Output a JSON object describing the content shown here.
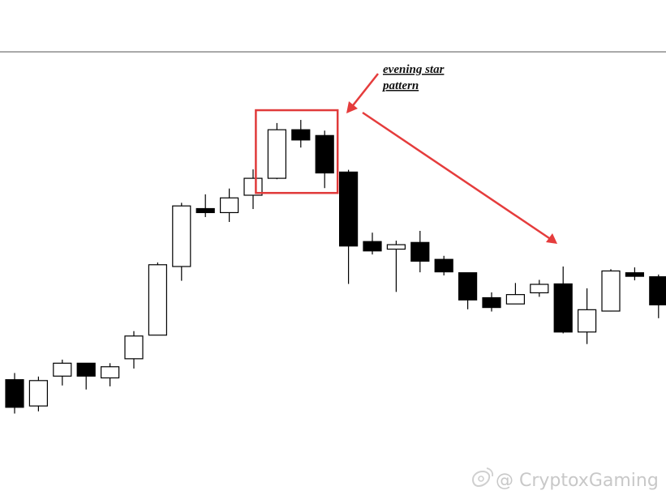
{
  "chart_data": {
    "type": "candlestick",
    "title": "",
    "xlabel": "",
    "ylabel": "",
    "ylim": [
      0,
      100
    ],
    "grid": false,
    "candles": [
      {
        "open": 26.6,
        "high": 28.1,
        "low": 19.0,
        "close": 20.4
      },
      {
        "open": 20.7,
        "high": 27.3,
        "low": 19.5,
        "close": 26.4
      },
      {
        "open": 27.4,
        "high": 31.1,
        "low": 25.3,
        "close": 30.3
      },
      {
        "open": 30.3,
        "high": 30.3,
        "low": 24.4,
        "close": 27.4
      },
      {
        "open": 27.0,
        "high": 30.3,
        "low": 25.1,
        "close": 29.5
      },
      {
        "open": 31.3,
        "high": 37.5,
        "low": 29.1,
        "close": 36.4
      },
      {
        "open": 36.6,
        "high": 52.9,
        "low": 36.6,
        "close": 52.4
      },
      {
        "open": 52.0,
        "high": 66.3,
        "low": 48.8,
        "close": 65.6
      },
      {
        "open": 65.0,
        "high": 68.2,
        "low": 63.1,
        "close": 64.1
      },
      {
        "open": 64.1,
        "high": 69.5,
        "low": 62.0,
        "close": 67.4
      },
      {
        "open": 68.0,
        "high": 73.8,
        "low": 64.9,
        "close": 71.8
      },
      {
        "open": 71.8,
        "high": 84.2,
        "low": 71.6,
        "close": 82.7
      },
      {
        "open": 82.7,
        "high": 84.9,
        "low": 78.7,
        "close": 80.4
      },
      {
        "open": 81.4,
        "high": 82.5,
        "low": 69.6,
        "close": 73.0
      },
      {
        "open": 73.2,
        "high": 73.7,
        "low": 48.1,
        "close": 56.6
      },
      {
        "open": 57.6,
        "high": 59.6,
        "low": 54.7,
        "close": 55.5
      },
      {
        "open": 55.9,
        "high": 57.8,
        "low": 46.3,
        "close": 56.9
      },
      {
        "open": 57.4,
        "high": 60.0,
        "low": 50.7,
        "close": 53.2
      },
      {
        "open": 53.6,
        "high": 54.4,
        "low": 50.0,
        "close": 50.8
      },
      {
        "open": 50.6,
        "high": 50.6,
        "low": 42.4,
        "close": 44.5
      },
      {
        "open": 45.0,
        "high": 46.2,
        "low": 41.9,
        "close": 42.8
      },
      {
        "open": 43.6,
        "high": 48.3,
        "low": 43.6,
        "close": 45.7
      },
      {
        "open": 46.1,
        "high": 49.0,
        "low": 45.2,
        "close": 48.0
      },
      {
        "open": 48.1,
        "high": 52.0,
        "low": 37.0,
        "close": 37.3
      },
      {
        "open": 37.3,
        "high": 47.1,
        "low": 34.6,
        "close": 42.3
      },
      {
        "open": 42.0,
        "high": 51.4,
        "low": 41.9,
        "close": 51.0
      },
      {
        "open": 50.6,
        "high": 51.8,
        "low": 48.9,
        "close": 49.8
      },
      {
        "open": 49.7,
        "high": 50.2,
        "low": 40.4,
        "close": 43.4
      }
    ],
    "annotations": [
      {
        "text": "evening star pattern",
        "lines": [
          "evening star",
          "pattern"
        ]
      }
    ],
    "highlight": {
      "from_index": 11,
      "to_index": 13
    },
    "colors": {
      "bullish_fill": "#ffffff",
      "bearish_fill": "#000000",
      "outline": "#000000",
      "highlight": "#e03a3a",
      "arrow": "#e53c3c",
      "watermark": "#c8c8c8"
    }
  },
  "watermark": {
    "text": "@ CryptoxGaming",
    "icon": "weibo-logo-icon"
  }
}
